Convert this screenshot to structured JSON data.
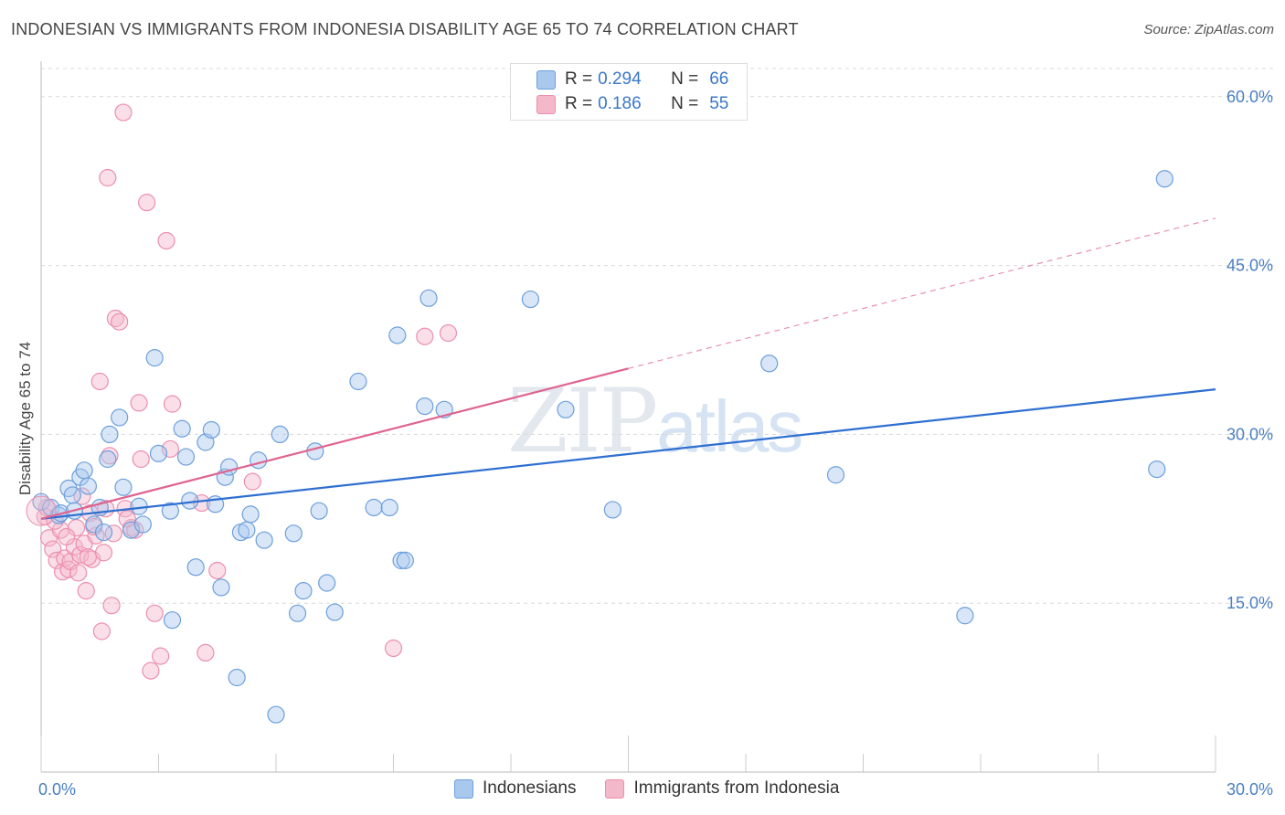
{
  "header": {
    "title": "INDONESIAN VS IMMIGRANTS FROM INDONESIA DISABILITY AGE 65 TO 74 CORRELATION CHART",
    "source": "Source: ZipAtlas.com"
  },
  "watermark": {
    "zip": "ZIP",
    "atlas": "atlas"
  },
  "legend": {
    "rows": [
      {
        "r_label": "R =",
        "r_value": "0.294",
        "n_label": "N =",
        "n_value": "66"
      },
      {
        "r_label": "R =",
        "r_value": "0.186",
        "n_label": "N =",
        "n_value": "55"
      }
    ]
  },
  "colors": {
    "blue_fill": "#a9c8ee",
    "blue_stroke": "#6d9fdc",
    "blue_line": "#2f6fd1",
    "pink_fill": "#f4b8cb",
    "pink_stroke": "#ec8fad",
    "pink_line": "#e0638f",
    "grid": "#d8d8d8",
    "tick_label": "#4a7fc1"
  },
  "chart_data": {
    "type": "scatter",
    "title": "INDONESIAN VS IMMIGRANTS FROM INDONESIA DISABILITY AGE 65 TO 74 CORRELATION CHART",
    "xlabel": "",
    "ylabel": "Disability Age 65 to 74",
    "xlim": [
      0,
      30
    ],
    "ylim": [
      0,
      62.5
    ],
    "x_tick_labels": [
      "0.0%",
      "30.0%"
    ],
    "y_ticks": [
      15,
      30,
      45,
      60
    ],
    "y_tick_labels": [
      "15.0%",
      "30.0%",
      "45.0%",
      "60.0%"
    ],
    "grid": true,
    "legend_position": "top-center",
    "series": [
      {
        "name": "Indonesians",
        "color": "#a9c8ee",
        "trend": {
          "x": [
            0,
            30
          ],
          "y": [
            22.5,
            34.0
          ],
          "dashed_from": null
        },
        "points": [
          [
            0.0,
            24.0
          ],
          [
            0.25,
            23.5
          ],
          [
            0.45,
            22.8
          ],
          [
            0.5,
            23.0
          ],
          [
            0.7,
            25.2
          ],
          [
            0.8,
            24.6
          ],
          [
            0.85,
            23.2
          ],
          [
            1.0,
            26.2
          ],
          [
            1.1,
            26.8
          ],
          [
            1.2,
            25.4
          ],
          [
            1.35,
            22.0
          ],
          [
            1.5,
            23.5
          ],
          [
            1.6,
            21.3
          ],
          [
            1.7,
            27.8
          ],
          [
            1.75,
            30.0
          ],
          [
            2.0,
            31.5
          ],
          [
            2.1,
            25.3
          ],
          [
            2.3,
            21.5
          ],
          [
            2.5,
            23.6
          ],
          [
            2.6,
            22.0
          ],
          [
            2.9,
            36.8
          ],
          [
            3.0,
            28.3
          ],
          [
            3.3,
            23.2
          ],
          [
            3.35,
            13.5
          ],
          [
            3.6,
            30.5
          ],
          [
            3.7,
            28.0
          ],
          [
            3.8,
            24.1
          ],
          [
            3.95,
            18.2
          ],
          [
            4.2,
            29.3
          ],
          [
            4.35,
            30.4
          ],
          [
            4.45,
            23.8
          ],
          [
            4.6,
            16.4
          ],
          [
            4.7,
            26.2
          ],
          [
            4.8,
            27.1
          ],
          [
            5.0,
            8.4
          ],
          [
            5.1,
            21.3
          ],
          [
            5.25,
            21.5
          ],
          [
            5.35,
            22.9
          ],
          [
            5.55,
            27.7
          ],
          [
            5.7,
            20.6
          ],
          [
            6.0,
            5.1
          ],
          [
            6.1,
            30.0
          ],
          [
            6.45,
            21.2
          ],
          [
            6.55,
            14.1
          ],
          [
            6.7,
            16.1
          ],
          [
            7.0,
            28.5
          ],
          [
            7.1,
            23.2
          ],
          [
            7.3,
            16.8
          ],
          [
            7.5,
            14.2
          ],
          [
            8.1,
            34.7
          ],
          [
            8.5,
            23.5
          ],
          [
            8.9,
            23.5
          ],
          [
            9.1,
            38.8
          ],
          [
            9.2,
            18.8
          ],
          [
            9.3,
            18.8
          ],
          [
            9.8,
            32.5
          ],
          [
            9.9,
            42.1
          ],
          [
            10.3,
            32.2
          ],
          [
            12.5,
            42.0
          ],
          [
            13.4,
            32.2
          ],
          [
            14.6,
            23.3
          ],
          [
            18.6,
            36.3
          ],
          [
            20.3,
            26.4
          ],
          [
            23.6,
            13.9
          ],
          [
            28.7,
            52.7
          ],
          [
            28.5,
            26.9
          ]
        ]
      },
      {
        "name": "Immigrants from Indonesia",
        "color": "#f4b8cb",
        "trend": {
          "x": [
            0,
            30
          ],
          "y": [
            22.5,
            49.2
          ],
          "solid_until": 15.0
        },
        "points": [
          [
            0.1,
            22.7
          ],
          [
            0.2,
            20.8
          ],
          [
            0.3,
            19.8
          ],
          [
            0.4,
            18.8
          ],
          [
            0.5,
            21.5
          ],
          [
            0.55,
            17.8
          ],
          [
            0.6,
            19.0
          ],
          [
            0.7,
            18.0
          ],
          [
            0.75,
            18.7
          ],
          [
            0.85,
            20.0
          ],
          [
            0.9,
            21.7
          ],
          [
            1.0,
            19.3
          ],
          [
            1.05,
            24.5
          ],
          [
            1.1,
            20.3
          ],
          [
            1.15,
            16.1
          ],
          [
            1.25,
            23.0
          ],
          [
            1.3,
            18.9
          ],
          [
            1.4,
            21.0
          ],
          [
            1.5,
            34.7
          ],
          [
            1.55,
            12.5
          ],
          [
            1.7,
            52.8
          ],
          [
            1.75,
            28.1
          ],
          [
            1.8,
            14.8
          ],
          [
            1.85,
            21.2
          ],
          [
            1.9,
            40.3
          ],
          [
            2.0,
            40.0
          ],
          [
            2.1,
            58.6
          ],
          [
            2.15,
            23.4
          ],
          [
            2.3,
            21.7
          ],
          [
            2.4,
            21.5
          ],
          [
            2.5,
            32.8
          ],
          [
            2.55,
            27.8
          ],
          [
            2.7,
            50.6
          ],
          [
            2.8,
            9.0
          ],
          [
            2.9,
            14.1
          ],
          [
            3.05,
            10.3
          ],
          [
            3.2,
            47.2
          ],
          [
            3.3,
            28.7
          ],
          [
            3.35,
            32.7
          ],
          [
            4.1,
            23.9
          ],
          [
            4.2,
            10.6
          ],
          [
            4.5,
            17.9
          ],
          [
            5.4,
            25.8
          ],
          [
            9.0,
            11.0
          ],
          [
            9.8,
            38.7
          ],
          [
            10.4,
            39.0
          ],
          [
            0.15,
            23.5
          ],
          [
            0.35,
            22.3
          ],
          [
            0.65,
            20.9
          ],
          [
            0.95,
            17.7
          ],
          [
            1.2,
            19.1
          ],
          [
            1.35,
            21.8
          ],
          [
            1.6,
            19.5
          ],
          [
            1.65,
            23.4
          ],
          [
            2.2,
            22.5
          ]
        ]
      }
    ]
  },
  "bottom_legend": {
    "items": [
      {
        "label": "Indonesians"
      },
      {
        "label": "Immigrants from Indonesia"
      }
    ]
  }
}
